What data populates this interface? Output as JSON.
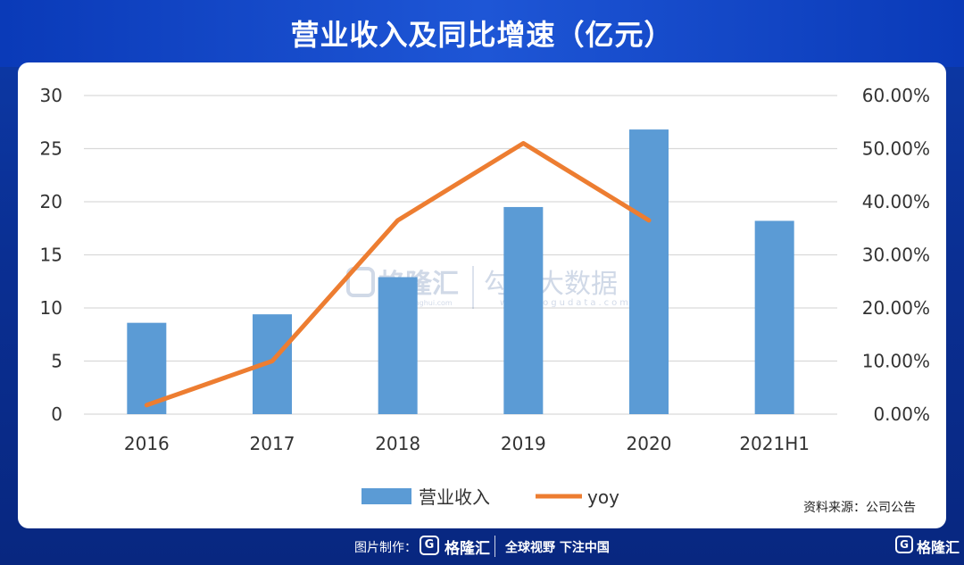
{
  "header": {
    "title": "营业收入及同比增速（亿元）"
  },
  "chart_data": {
    "type": "bar",
    "title": "营业收入及同比增速（亿元）",
    "categories": [
      "2016",
      "2017",
      "2018",
      "2019",
      "2020",
      "2021H1"
    ],
    "series": [
      {
        "name": "营业收入",
        "type": "bar",
        "axis": "left",
        "color": "#5b9bd5",
        "values": [
          8.6,
          9.4,
          12.9,
          19.5,
          26.8,
          18.2
        ]
      },
      {
        "name": "yoy",
        "type": "line",
        "axis": "right",
        "color": "#ed7d31",
        "values": [
          0.017,
          0.1,
          0.365,
          0.51,
          0.365,
          null
        ]
      }
    ],
    "y_left": {
      "ylim": [
        0,
        30
      ],
      "ticks": [
        "0",
        "5",
        "10",
        "15",
        "20",
        "25",
        "30"
      ]
    },
    "y_right": {
      "ylim": [
        0,
        0.6
      ],
      "ticks": [
        "0.00%",
        "10.00%",
        "20.00%",
        "30.00%",
        "40.00%",
        "50.00%",
        "60.00%"
      ]
    },
    "grid": true,
    "legend_position": "bottom-center"
  },
  "watermark": {
    "brand": "格隆汇",
    "brand_url": "www.gelonghui.com",
    "product": "勾股大数据",
    "product_url": "www.gogudata.com"
  },
  "source_note": "资料来源：公司公告",
  "footer": {
    "made_label": "图片制作：",
    "logo_letter": "G",
    "brand": "格隆汇",
    "slogan": "全球视野 下注中国",
    "brand_right": "格隆汇"
  }
}
